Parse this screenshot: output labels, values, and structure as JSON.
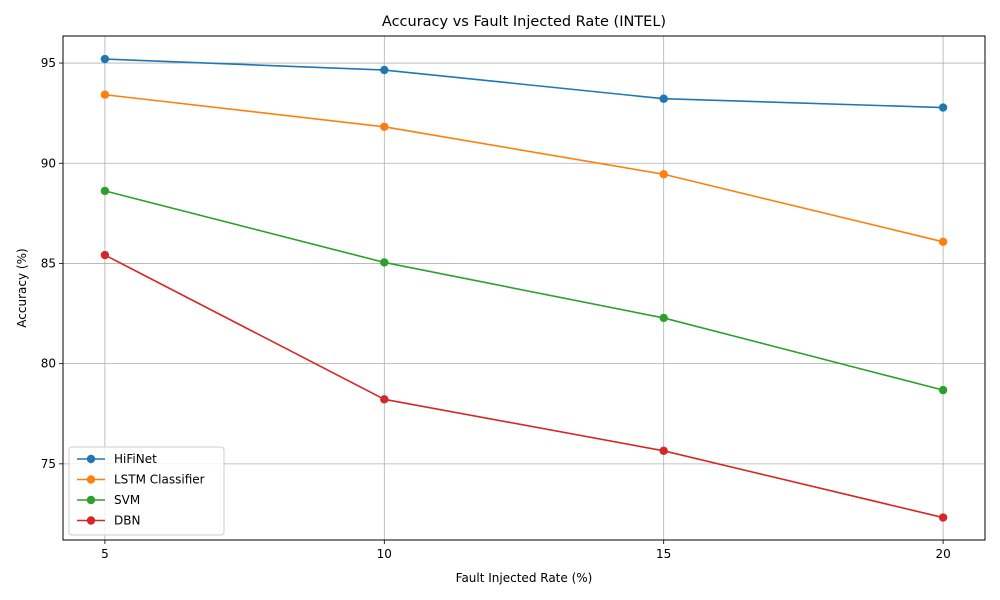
{
  "chart_data": {
    "type": "line",
    "title": "Accuracy vs Fault Injected Rate (INTEL)",
    "xlabel": "Fault Injected Rate (%)",
    "ylabel": "Accuracy (%)",
    "x": [
      5,
      10,
      15,
      20
    ],
    "xticks": [
      5,
      10,
      15,
      20
    ],
    "yticks": [
      75,
      80,
      85,
      90,
      95
    ],
    "xlim": [
      4.25,
      20.75
    ],
    "ylim": [
      71.2,
      96.35
    ],
    "grid": true,
    "legend_position": "lower-left",
    "series": [
      {
        "name": "HiFiNet",
        "color": "#1f77b4",
        "values": [
          95.2,
          94.65,
          93.22,
          92.78
        ]
      },
      {
        "name": "LSTM Classifier",
        "color": "#ff7f0e",
        "values": [
          93.42,
          91.82,
          89.45,
          86.08
        ]
      },
      {
        "name": "SVM",
        "color": "#2ca02c",
        "values": [
          88.62,
          85.05,
          82.28,
          78.68
        ]
      },
      {
        "name": "DBN",
        "color": "#d62728",
        "values": [
          85.42,
          78.22,
          75.65,
          72.32
        ]
      }
    ]
  }
}
